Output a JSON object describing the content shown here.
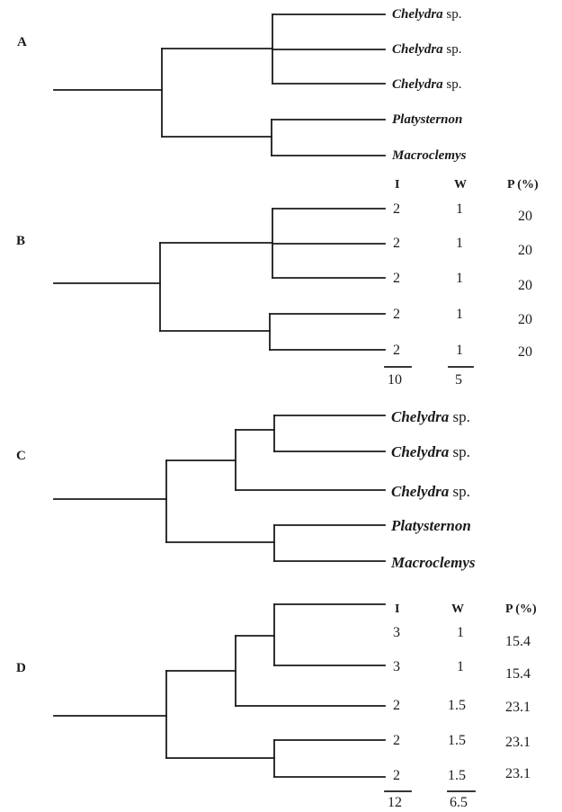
{
  "panels": [
    {
      "letter": "A"
    },
    {
      "letter": "B"
    },
    {
      "letter": "C"
    },
    {
      "letter": "D"
    }
  ],
  "taxa_a": [
    {
      "genus": "Chelydra",
      "suffix": "sp."
    },
    {
      "genus": "Chelydra",
      "suffix": "sp."
    },
    {
      "genus": "Chelydra",
      "suffix": "sp."
    },
    {
      "genus": "Platysternon",
      "suffix": ""
    },
    {
      "genus": "Macroclemys",
      "suffix": ""
    }
  ],
  "taxa_c": [
    {
      "genus": "Chelydra",
      "suffix": "sp."
    },
    {
      "genus": "Chelydra",
      "suffix": "sp."
    },
    {
      "genus": "Chelydra",
      "suffix": "sp."
    },
    {
      "genus": "Platysternon",
      "suffix": ""
    },
    {
      "genus": "Macroclemys",
      "suffix": ""
    }
  ],
  "table_b": {
    "headers": {
      "i": "I",
      "w": "W",
      "p": "P (%)"
    },
    "rows": [
      {
        "i": "2",
        "w": "1",
        "p": "20"
      },
      {
        "i": "2",
        "w": "1",
        "p": "20"
      },
      {
        "i": "2",
        "w": "1",
        "p": "20"
      },
      {
        "i": "2",
        "w": "1",
        "p": "20"
      },
      {
        "i": "2",
        "w": "1",
        "p": "20"
      }
    ],
    "totals": {
      "i": "10",
      "w": "5"
    }
  },
  "table_d": {
    "headers": {
      "i": "I",
      "w": "W",
      "p": "P (%)"
    },
    "rows": [
      {
        "i": "3",
        "w": "1",
        "p": "15.4"
      },
      {
        "i": "3",
        "w": "1",
        "p": "15.4"
      },
      {
        "i": "2",
        "w": "1.5",
        "p": "23.1"
      },
      {
        "i": "2",
        "w": "1.5",
        "p": "23.1"
      },
      {
        "i": "2",
        "w": "1.5",
        "p": "23.1"
      }
    ],
    "totals": {
      "i": "12",
      "w": "6.5"
    }
  }
}
